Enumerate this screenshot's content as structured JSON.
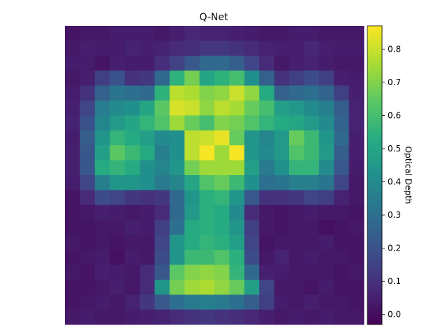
{
  "chart_data": {
    "type": "heatmap",
    "title": "Q-Net",
    "xlabel": "",
    "ylabel": "",
    "axes_visible": false,
    "colormap": "viridis",
    "grid": false,
    "colorbar": {
      "label": "Optical Depth",
      "vmin": -0.03,
      "vmax": 0.87,
      "ticks": [
        0.0,
        0.1,
        0.2,
        0.3,
        0.4,
        0.5,
        0.6,
        0.7,
        0.8
      ],
      "tick_labels": [
        "0.0",
        "0.1",
        "0.2",
        "0.3",
        "0.4",
        "0.5",
        "0.6",
        "0.7",
        "0.8"
      ]
    },
    "rows": 20,
    "cols": 20,
    "values": [
      [
        0.02,
        0.03,
        0.03,
        0.04,
        0.04,
        0.04,
        0.03,
        0.05,
        0.07,
        0.06,
        0.06,
        0.05,
        0.04,
        0.03,
        0.03,
        0.04,
        0.04,
        0.03,
        0.03,
        0.03
      ],
      [
        0.03,
        0.05,
        0.04,
        0.04,
        0.06,
        0.05,
        0.06,
        0.08,
        0.09,
        0.12,
        0.12,
        0.1,
        0.08,
        0.06,
        0.05,
        0.05,
        0.07,
        0.05,
        0.04,
        0.04
      ],
      [
        0.04,
        0.04,
        0.02,
        0.05,
        0.04,
        0.04,
        0.09,
        0.15,
        0.22,
        0.28,
        0.28,
        0.24,
        0.16,
        0.08,
        0.03,
        0.05,
        0.06,
        0.04,
        0.03,
        0.03
      ],
      [
        0.03,
        0.05,
        0.14,
        0.2,
        0.1,
        0.12,
        0.28,
        0.55,
        0.68,
        0.5,
        0.55,
        0.6,
        0.42,
        0.25,
        0.1,
        0.14,
        0.18,
        0.14,
        0.05,
        0.04
      ],
      [
        0.04,
        0.1,
        0.25,
        0.32,
        0.3,
        0.28,
        0.55,
        0.78,
        0.76,
        0.7,
        0.72,
        0.8,
        0.72,
        0.52,
        0.25,
        0.28,
        0.3,
        0.26,
        0.14,
        0.05
      ],
      [
        0.05,
        0.16,
        0.35,
        0.4,
        0.42,
        0.5,
        0.64,
        0.82,
        0.8,
        0.72,
        0.78,
        0.75,
        0.66,
        0.6,
        0.48,
        0.45,
        0.4,
        0.36,
        0.24,
        0.06
      ],
      [
        0.06,
        0.2,
        0.38,
        0.46,
        0.5,
        0.56,
        0.62,
        0.74,
        0.66,
        0.6,
        0.7,
        0.68,
        0.62,
        0.56,
        0.52,
        0.5,
        0.46,
        0.4,
        0.26,
        0.06
      ],
      [
        0.04,
        0.24,
        0.44,
        0.56,
        0.52,
        0.48,
        0.4,
        0.42,
        0.78,
        0.8,
        0.84,
        0.66,
        0.44,
        0.38,
        0.46,
        0.66,
        0.58,
        0.44,
        0.28,
        0.05
      ],
      [
        0.05,
        0.22,
        0.48,
        0.64,
        0.58,
        0.52,
        0.36,
        0.42,
        0.78,
        0.86,
        0.74,
        0.86,
        0.44,
        0.4,
        0.46,
        0.62,
        0.58,
        0.46,
        0.24,
        0.05
      ],
      [
        0.05,
        0.22,
        0.52,
        0.56,
        0.52,
        0.42,
        0.38,
        0.44,
        0.68,
        0.74,
        0.74,
        0.74,
        0.48,
        0.34,
        0.42,
        0.56,
        0.56,
        0.4,
        0.22,
        0.04
      ],
      [
        0.04,
        0.16,
        0.36,
        0.44,
        0.44,
        0.42,
        0.34,
        0.38,
        0.5,
        0.62,
        0.66,
        0.58,
        0.42,
        0.3,
        0.32,
        0.36,
        0.36,
        0.32,
        0.16,
        0.03
      ],
      [
        0.02,
        0.08,
        0.18,
        0.16,
        0.12,
        0.1,
        0.12,
        0.28,
        0.44,
        0.54,
        0.56,
        0.44,
        0.22,
        0.1,
        0.1,
        0.12,
        0.16,
        0.14,
        0.06,
        0.03
      ],
      [
        0.02,
        0.03,
        0.05,
        0.04,
        0.03,
        0.04,
        0.08,
        0.28,
        0.46,
        0.54,
        0.52,
        0.4,
        0.08,
        0.03,
        0.02,
        0.03,
        0.04,
        0.03,
        0.03,
        0.02
      ],
      [
        0.02,
        0.02,
        0.03,
        0.03,
        0.05,
        0.04,
        0.14,
        0.3,
        0.52,
        0.54,
        0.52,
        0.44,
        0.14,
        0.03,
        0.02,
        0.03,
        0.03,
        0.01,
        0.02,
        0.03
      ],
      [
        0.03,
        0.02,
        0.03,
        0.02,
        0.03,
        0.03,
        0.16,
        0.44,
        0.52,
        0.56,
        0.54,
        0.48,
        0.16,
        0.02,
        0.03,
        0.03,
        0.03,
        0.04,
        0.02,
        0.02
      ],
      [
        0.02,
        0.03,
        0.04,
        0.01,
        0.04,
        0.03,
        0.18,
        0.44,
        0.58,
        0.58,
        0.62,
        0.54,
        0.18,
        0.03,
        0.06,
        0.03,
        0.04,
        0.03,
        0.03,
        0.02
      ],
      [
        0.03,
        0.02,
        0.05,
        0.04,
        0.03,
        0.08,
        0.22,
        0.64,
        0.7,
        0.72,
        0.7,
        0.56,
        0.28,
        0.05,
        0.04,
        0.03,
        0.03,
        0.03,
        0.02,
        0.03
      ],
      [
        0.02,
        0.02,
        0.03,
        0.05,
        0.03,
        0.08,
        0.44,
        0.68,
        0.74,
        0.76,
        0.72,
        0.66,
        0.48,
        0.16,
        0.03,
        0.03,
        0.02,
        0.04,
        0.02,
        0.02
      ],
      [
        0.02,
        0.03,
        0.04,
        0.03,
        0.06,
        0.12,
        0.22,
        0.3,
        0.34,
        0.36,
        0.34,
        0.3,
        0.24,
        0.14,
        0.04,
        0.03,
        0.05,
        0.03,
        0.03,
        0.02
      ],
      [
        0.03,
        0.04,
        0.03,
        0.03,
        0.04,
        0.05,
        0.06,
        0.08,
        0.1,
        0.12,
        0.1,
        0.09,
        0.07,
        0.05,
        0.03,
        0.04,
        0.03,
        0.04,
        0.03,
        0.03
      ]
    ]
  }
}
